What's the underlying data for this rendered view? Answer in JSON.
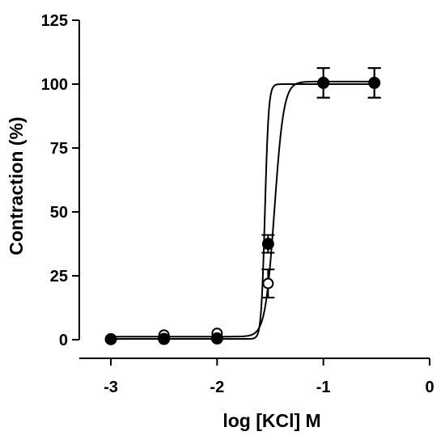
{
  "chart_data": {
    "type": "scatter",
    "title": "",
    "xlabel": "log [KCl] M",
    "ylabel": "Contraction (%)",
    "xlim": [
      -3,
      0
    ],
    "ylim": [
      0,
      125
    ],
    "x_ticks": [
      -3,
      -2,
      -1,
      0
    ],
    "x_tick_labels": [
      "-3",
      "-2",
      "-1",
      "0"
    ],
    "y_ticks": [
      0,
      25,
      50,
      75,
      100,
      125
    ],
    "y_tick_labels": [
      "0",
      "25",
      "50",
      "75",
      "100",
      "125"
    ],
    "grid": false,
    "legend": "none",
    "series": [
      {
        "marker": "open-circle",
        "x": [
          -3,
          -2.5,
          -2,
          -1.52,
          -1,
          -0.52
        ],
        "y": [
          0.3,
          1.8,
          2.5,
          22,
          100.5,
          100.5
        ],
        "error": [
          0,
          0,
          0,
          5.5,
          5.8,
          5.8
        ],
        "fit": {
          "bottom": 1.2,
          "top": 101,
          "logEC50": -1.46,
          "hill": 10
        }
      },
      {
        "marker": "filled-circle",
        "x": [
          -3,
          -2.5,
          -2,
          -1.52,
          -1,
          -0.52
        ],
        "y": [
          0.2,
          0.3,
          0.5,
          37.5,
          100.5,
          100.5
        ],
        "error": [
          0,
          0,
          0,
          3.5,
          5.8,
          5.8
        ],
        "fit": {
          "bottom": 0.3,
          "top": 100,
          "logEC50": -1.55,
          "hill": 25
        }
      }
    ]
  }
}
